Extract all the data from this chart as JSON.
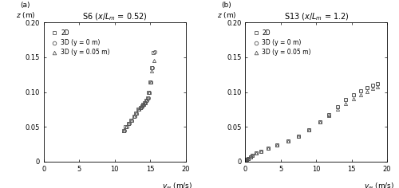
{
  "panel_a": {
    "title": "S6 ($x/L_{m}$ = 0.52)",
    "xlim": [
      0,
      20
    ],
    "ylim": [
      0,
      0.2
    ],
    "xticks": [
      0,
      5,
      10,
      15,
      20
    ],
    "yticks": [
      0,
      0.05,
      0.1,
      0.15,
      0.2
    ],
    "ytick_labels": [
      "0",
      "0.05",
      "0.10",
      "0.15",
      "0.20"
    ],
    "data_2D_vw": [
      11.2,
      11.5,
      11.9,
      12.3,
      12.7,
      13.0,
      13.3,
      13.6,
      13.8,
      14.0,
      14.2,
      14.4,
      14.6,
      14.8,
      15.0,
      15.2,
      15.4
    ],
    "data_2D_z": [
      0.045,
      0.05,
      0.055,
      0.06,
      0.065,
      0.07,
      0.075,
      0.078,
      0.08,
      0.082,
      0.085,
      0.088,
      0.092,
      0.1,
      0.115,
      0.135,
      0.157
    ],
    "data_3D0_vw": [
      11.4,
      11.7,
      12.0,
      12.4,
      12.8,
      13.1,
      13.4,
      13.7,
      13.9,
      14.1,
      14.3,
      14.5,
      14.7,
      14.9,
      15.1,
      15.3,
      15.6
    ],
    "data_3D0_z": [
      0.045,
      0.05,
      0.055,
      0.06,
      0.065,
      0.07,
      0.075,
      0.078,
      0.08,
      0.082,
      0.085,
      0.088,
      0.092,
      0.1,
      0.115,
      0.135,
      0.158
    ],
    "data_3D05_vw": [
      11.3,
      11.6,
      11.95,
      12.35,
      12.75,
      13.05,
      13.35,
      13.65,
      13.85,
      14.05,
      14.25,
      14.45,
      14.65,
      14.85,
      15.05,
      15.25,
      15.5
    ],
    "data_3D05_z": [
      0.045,
      0.05,
      0.055,
      0.06,
      0.065,
      0.07,
      0.075,
      0.078,
      0.08,
      0.082,
      0.085,
      0.088,
      0.092,
      0.1,
      0.115,
      0.13,
      0.145
    ]
  },
  "panel_b": {
    "title": "S13 ($x/L_{m}$ = 1.2)",
    "xlim": [
      0,
      20
    ],
    "ylim": [
      0,
      0.2
    ],
    "xticks": [
      0,
      5,
      10,
      15,
      20
    ],
    "yticks": [
      0,
      0.05,
      0.1,
      0.15,
      0.2
    ],
    "ytick_labels": [
      "0",
      "0.05",
      "0.10",
      "0.15",
      "0.20"
    ],
    "data_2D_vw": [
      0.0,
      0.05,
      0.1,
      0.2,
      0.4,
      0.7,
      1.0,
      1.5,
      2.2,
      3.2,
      4.5,
      6.0,
      7.5,
      9.0,
      10.5,
      11.8,
      13.0,
      14.2,
      15.3,
      16.3,
      17.2,
      18.0,
      18.6
    ],
    "data_2D_z": [
      0.0,
      0.001,
      0.002,
      0.003,
      0.005,
      0.007,
      0.009,
      0.012,
      0.015,
      0.019,
      0.024,
      0.03,
      0.037,
      0.046,
      0.057,
      0.068,
      0.079,
      0.089,
      0.096,
      0.102,
      0.107,
      0.11,
      0.112
    ],
    "data_3D0_vw": [
      0.0,
      0.05,
      0.1,
      0.2,
      0.4,
      0.7,
      1.0,
      1.5,
      2.2,
      3.2,
      4.5,
      6.0,
      7.5,
      9.0,
      10.5,
      11.8,
      13.0,
      14.2,
      15.3,
      16.3,
      17.2,
      18.0,
      18.6
    ],
    "data_3D0_z": [
      0.0,
      0.001,
      0.002,
      0.003,
      0.005,
      0.007,
      0.009,
      0.012,
      0.015,
      0.019,
      0.024,
      0.03,
      0.037,
      0.046,
      0.057,
      0.068,
      0.079,
      0.089,
      0.096,
      0.102,
      0.107,
      0.11,
      0.112
    ],
    "data_3D05_vw": [
      0.0,
      0.05,
      0.1,
      0.2,
      0.4,
      0.7,
      1.0,
      1.5,
      2.2,
      3.2,
      4.5,
      6.0,
      7.5,
      9.0,
      10.5,
      11.8,
      13.0,
      14.2,
      15.3,
      16.3,
      17.2,
      18.0,
      18.6
    ],
    "data_3D05_z": [
      0.0,
      0.001,
      0.002,
      0.003,
      0.005,
      0.007,
      0.009,
      0.012,
      0.015,
      0.019,
      0.024,
      0.03,
      0.037,
      0.046,
      0.057,
      0.066,
      0.075,
      0.083,
      0.09,
      0.096,
      0.101,
      0.105,
      0.108
    ]
  },
  "legend_2D": "2D",
  "legend_3D0": "3D (y = 0 m)",
  "legend_3D05": "3D (y = 0.05 m)",
  "marker_2D": "s",
  "marker_3D0": "o",
  "marker_3D05": "^",
  "marker_size": 3.0,
  "marker_color": "#555555",
  "label_fontsize": 6.5,
  "tick_fontsize": 6,
  "title_fontsize": 7,
  "legend_fontsize": 5.5
}
